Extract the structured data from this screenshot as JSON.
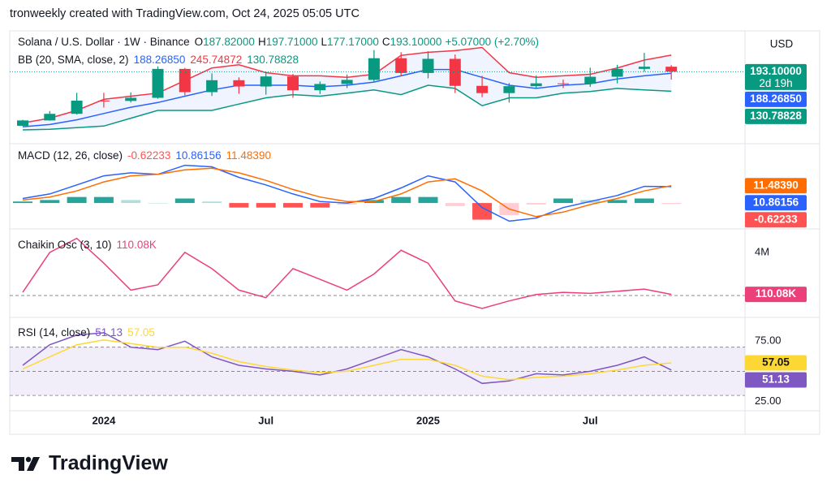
{
  "header": {
    "attribution": "tronweekly created with TradingView.com, Oct 24, 2025 05:05 UTC"
  },
  "footer": {
    "logo": "TradingView"
  },
  "chart_data": [
    {
      "type": "candlestick",
      "title": "Solana / U.S. Dollar · 1W · Binance",
      "currency": "USD",
      "countdown": "2d 19h",
      "categories": [
        null,
        null,
        null,
        "2024",
        null,
        null,
        null,
        null,
        null,
        "Jul",
        null,
        null,
        null,
        null,
        null,
        "2025",
        null,
        null,
        null,
        null,
        null,
        "Jul",
        null,
        null,
        null
      ],
      "open": [
        21,
        38,
        59,
        101,
        100,
        110,
        202,
        128,
        166,
        146,
        178,
        134,
        154,
        167,
        236,
        189,
        234,
        148,
        125,
        147,
        156,
        155,
        177,
        202,
        209
      ],
      "high": [
        40,
        68,
        126,
        126,
        127,
        210,
        205,
        188,
        175,
        194,
        186,
        162,
        184,
        262,
        255,
        258,
        248,
        180,
        157,
        181,
        168,
        206,
        215,
        253,
        214
      ],
      "low": [
        20,
        37,
        57,
        79,
        95,
        107,
        118,
        116,
        123,
        120,
        110,
        122,
        141,
        160,
        180,
        172,
        125,
        112,
        95,
        139,
        141,
        145,
        156,
        193,
        168
      ],
      "close": [
        38,
        59,
        101,
        100,
        110,
        202,
        128,
        166,
        146,
        178,
        134,
        154,
        167,
        236,
        189,
        234,
        148,
        125,
        147,
        156,
        155,
        177,
        202,
        209,
        193.1
      ],
      "up_color": "#089981",
      "down_color": "#f23645",
      "ylim": [
        -5,
        305
      ],
      "ohlc": {
        "labels": [
          "O",
          "H",
          "L",
          "C"
        ],
        "values": [
          187.82,
          197.71,
          177.17,
          193.1
        ],
        "value_labels": [
          "187.82000",
          "197.71000",
          "177.17000",
          "193.10000"
        ]
      },
      "change": "+5.07000 (+2.70%)",
      "bands": {
        "label": "BB (20, SMA, close, 2)",
        "fill": "rgba(41,98,255,0.07)",
        "series": [
          {
            "color": "#2962ff",
            "axis_label": true,
            "last_label": "188.26850",
            "values": [
              18,
              25,
              40,
              60,
              80,
              95,
              115,
              135,
              150,
              150,
              150,
              145,
              150,
              160,
              180,
              200,
              200,
              175,
              150,
              140,
              150,
              155,
              170,
              180,
              188.2685
            ]
          },
          {
            "color": "#f23645",
            "axis_label": false,
            "last_label": "245.74872",
            "values": [
              30,
              45,
              70,
              105,
              115,
              125,
              165,
              205,
              215,
              190,
              180,
              180,
              175,
              185,
              245,
              255,
              260,
              270,
              190,
              175,
              180,
              185,
              205,
              230,
              245.74872
            ]
          },
          {
            "color": "#089981",
            "axis_label": true,
            "last_label": "130.78828",
            "values": [
              8,
              10,
              15,
              20,
              45,
              70,
              70,
              70,
              90,
              110,
              120,
              115,
              125,
              135,
              120,
              150,
              140,
              85,
              110,
              110,
              125,
              130,
              140,
              135,
              130.78828
            ]
          }
        ]
      }
    },
    {
      "type": "line",
      "title": "MACD (12, 26, close)",
      "ylim": [
        -15,
        35
      ],
      "histogram": {
        "up_color": "#26a69a",
        "down_color": "#ff5252",
        "axis_label": true,
        "last_label": "-0.62233",
        "values": [
          1,
          2,
          4,
          4,
          2,
          0,
          3,
          1,
          -3,
          -3,
          -3,
          -3,
          -1,
          2,
          4,
          4,
          -2,
          -11,
          -8,
          -1,
          3,
          2,
          2,
          3,
          -0.62233
        ]
      },
      "series": [
        {
          "color": "#2962ff",
          "axis_label": true,
          "last_label": "10.86156",
          "values": [
            3,
            6,
            12,
            18,
            20,
            19,
            25,
            24,
            17,
            12,
            6,
            1,
            0,
            3,
            10,
            18,
            14,
            -3,
            -12,
            -10,
            -3,
            1,
            5,
            11,
            10.86156
          ]
        },
        {
          "color": "#ff6d00",
          "axis_label": true,
          "last_label": "11.48390",
          "values": [
            2,
            4,
            8,
            14,
            18,
            19,
            22,
            23,
            20,
            15,
            9,
            4,
            1,
            1,
            6,
            14,
            16,
            8,
            -4,
            -9,
            -6,
            -1,
            3,
            8,
            11.4839
          ]
        }
      ]
    },
    {
      "type": "line",
      "title": "Chaikin Osc (3, 10)",
      "ylim": [
        -1800000,
        5800000
      ],
      "yticks": [
        {
          "value": 4000000,
          "label": "4M"
        }
      ],
      "levels": [
        0
      ],
      "series": [
        {
          "color": "#ec407a",
          "axis_label": true,
          "last_label": "110.08K",
          "values": [
            300000,
            4000000,
            5300000,
            3000000,
            500000,
            1000000,
            4000000,
            2500000,
            500000,
            -200000,
            2500000,
            1500000,
            500000,
            2000000,
            4200000,
            3000000,
            -500000,
            -1200000,
            -500000,
            100000,
            300000,
            200000,
            400000,
            600000,
            110080
          ]
        }
      ]
    },
    {
      "type": "line",
      "title": "RSI (14, close)",
      "ylim": [
        18,
        92
      ],
      "yticks": [
        {
          "value": 75,
          "label": "75.00"
        },
        {
          "value": 25,
          "label": "25.00"
        }
      ],
      "levels": [
        70,
        50,
        30
      ],
      "band_fill": "rgba(126,87,194,0.1)",
      "series": [
        {
          "color": "#7e57c2",
          "axis_label": true,
          "last_label": "51.13",
          "values": [
            55,
            72,
            80,
            82,
            70,
            68,
            75,
            62,
            55,
            52,
            50,
            47,
            52,
            60,
            68,
            62,
            52,
            40,
            42,
            48,
            47,
            50,
            55,
            62,
            51.13
          ]
        },
        {
          "color": "#fdd835",
          "axis_label": true,
          "last_label": "57.05",
          "values": [
            52,
            62,
            72,
            76,
            73,
            70,
            70,
            65,
            58,
            54,
            51,
            49,
            50,
            55,
            60,
            60,
            55,
            46,
            43,
            45,
            46,
            48,
            51,
            55,
            57.05
          ]
        }
      ]
    }
  ]
}
